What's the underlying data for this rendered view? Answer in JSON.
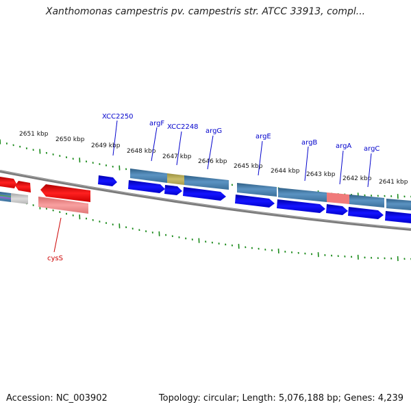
{
  "title": "Xanthomonas campestris pv. campestris str. ATCC 33913, compl...",
  "footer": {
    "accession": "Accession: NC_003902",
    "summary": "Topology: circular; Length: 5,076,188 bp; Genes: 4,239"
  },
  "colors": {
    "ruler_ticks": "#1a8a1a",
    "backbone": "#808080",
    "forward_cds": "#0000ee",
    "gene_block": "#4682b4",
    "reverse_cds": "#ee1111",
    "reverse_gene_block": "#f08080",
    "label_forward": "#0000cc",
    "label_reverse": "#cc0000"
  },
  "ruler": {
    "tick_labels": [
      "2651 kbp",
      "2650 kbp",
      "2649 kbp",
      "2648 kbp",
      "2647 kbp",
      "2646 kbp",
      "2645 kbp",
      "2644 kbp",
      "2643 kbp",
      "2642 kbp",
      "2641 kbp"
    ]
  },
  "genes_forward": [
    "XCC2250",
    "argF",
    "XCC2248",
    "argG",
    "argE",
    "argB",
    "argA",
    "argC"
  ],
  "genes_reverse": [
    "cysS"
  ]
}
